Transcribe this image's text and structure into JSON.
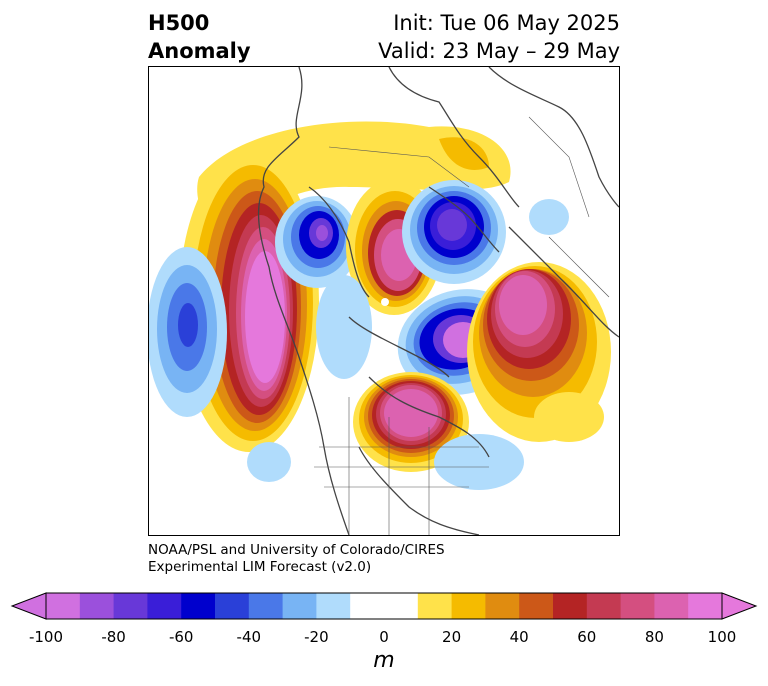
{
  "header": {
    "title_line1": "H500",
    "title_line2": "Anomaly",
    "init_label": "Init: Tue 06 May 2025",
    "valid_label": "Valid: 23 May – 29 May"
  },
  "credit": {
    "line1": "NOAA/PSL and University of Colorado/CIRES",
    "line2": "Experimental LIM Forecast (v2.0)"
  },
  "colorbar": {
    "units": "m",
    "ticks": [
      "-100",
      "-80",
      "-60",
      "-40",
      "-20",
      "0",
      "20",
      "40",
      "60",
      "80",
      "100"
    ],
    "tick_values": [
      -100,
      -80,
      -60,
      -40,
      -20,
      0,
      20,
      40,
      60,
      80,
      100
    ],
    "levels": [
      -100,
      -90,
      -80,
      -70,
      -60,
      -50,
      -40,
      -30,
      -20,
      -10,
      10,
      20,
      30,
      40,
      50,
      60,
      70,
      80,
      90,
      100
    ],
    "colors": [
      "#d070e0",
      "#9b50dc",
      "#6838d8",
      "#3a1ed8",
      "#0000cd",
      "#2a40d8",
      "#4a78e8",
      "#78b4f4",
      "#b0dcfc",
      "#ffffff",
      "#ffe24a",
      "#f5bb00",
      "#e08c10",
      "#cc5818",
      "#b42424",
      "#c43a52",
      "#d44f80",
      "#dc62b0",
      "#e578dc"
    ]
  }
}
